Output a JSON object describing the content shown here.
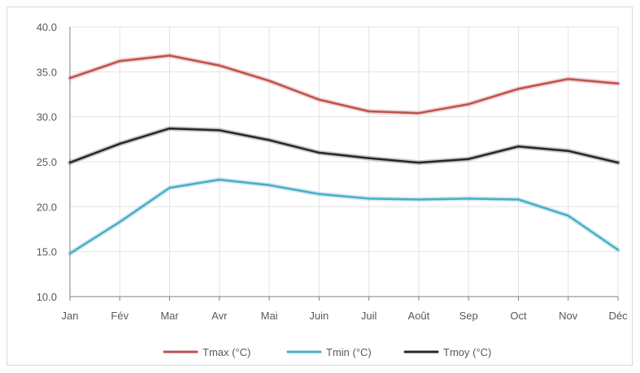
{
  "chart_data": {
    "type": "line",
    "categories": [
      "Jan",
      "Fév",
      "Mar",
      "Avr",
      "Mai",
      "Juin",
      "Juil",
      "Août",
      "Sep",
      "Oct",
      "Nov",
      "Déc"
    ],
    "ylim": [
      10,
      40
    ],
    "ytick_step": 5,
    "ytick_labels": [
      "10.0",
      "15.0",
      "20.0",
      "25.0",
      "30.0",
      "35.0",
      "40.0"
    ],
    "grid": true,
    "legend_position": "bottom",
    "title": "",
    "xlabel": "",
    "ylabel": "",
    "series": [
      {
        "name": "Tmax (°C)",
        "color": "#c0504d",
        "values": [
          34.3,
          36.2,
          36.8,
          35.7,
          34.0,
          31.9,
          30.6,
          30.4,
          31.4,
          33.1,
          34.2,
          33.7
        ]
      },
      {
        "name": "Tmin (°C)",
        "color": "#4bacc6",
        "values": [
          14.8,
          18.3,
          22.1,
          23.0,
          22.4,
          21.4,
          20.9,
          20.8,
          20.9,
          20.8,
          19.0,
          15.2
        ]
      },
      {
        "name": "Tmoy (°C)",
        "color": "#262626",
        "values": [
          24.9,
          27.0,
          28.7,
          28.5,
          27.4,
          26.0,
          25.4,
          24.9,
          25.3,
          26.7,
          26.2,
          24.9
        ]
      }
    ]
  }
}
